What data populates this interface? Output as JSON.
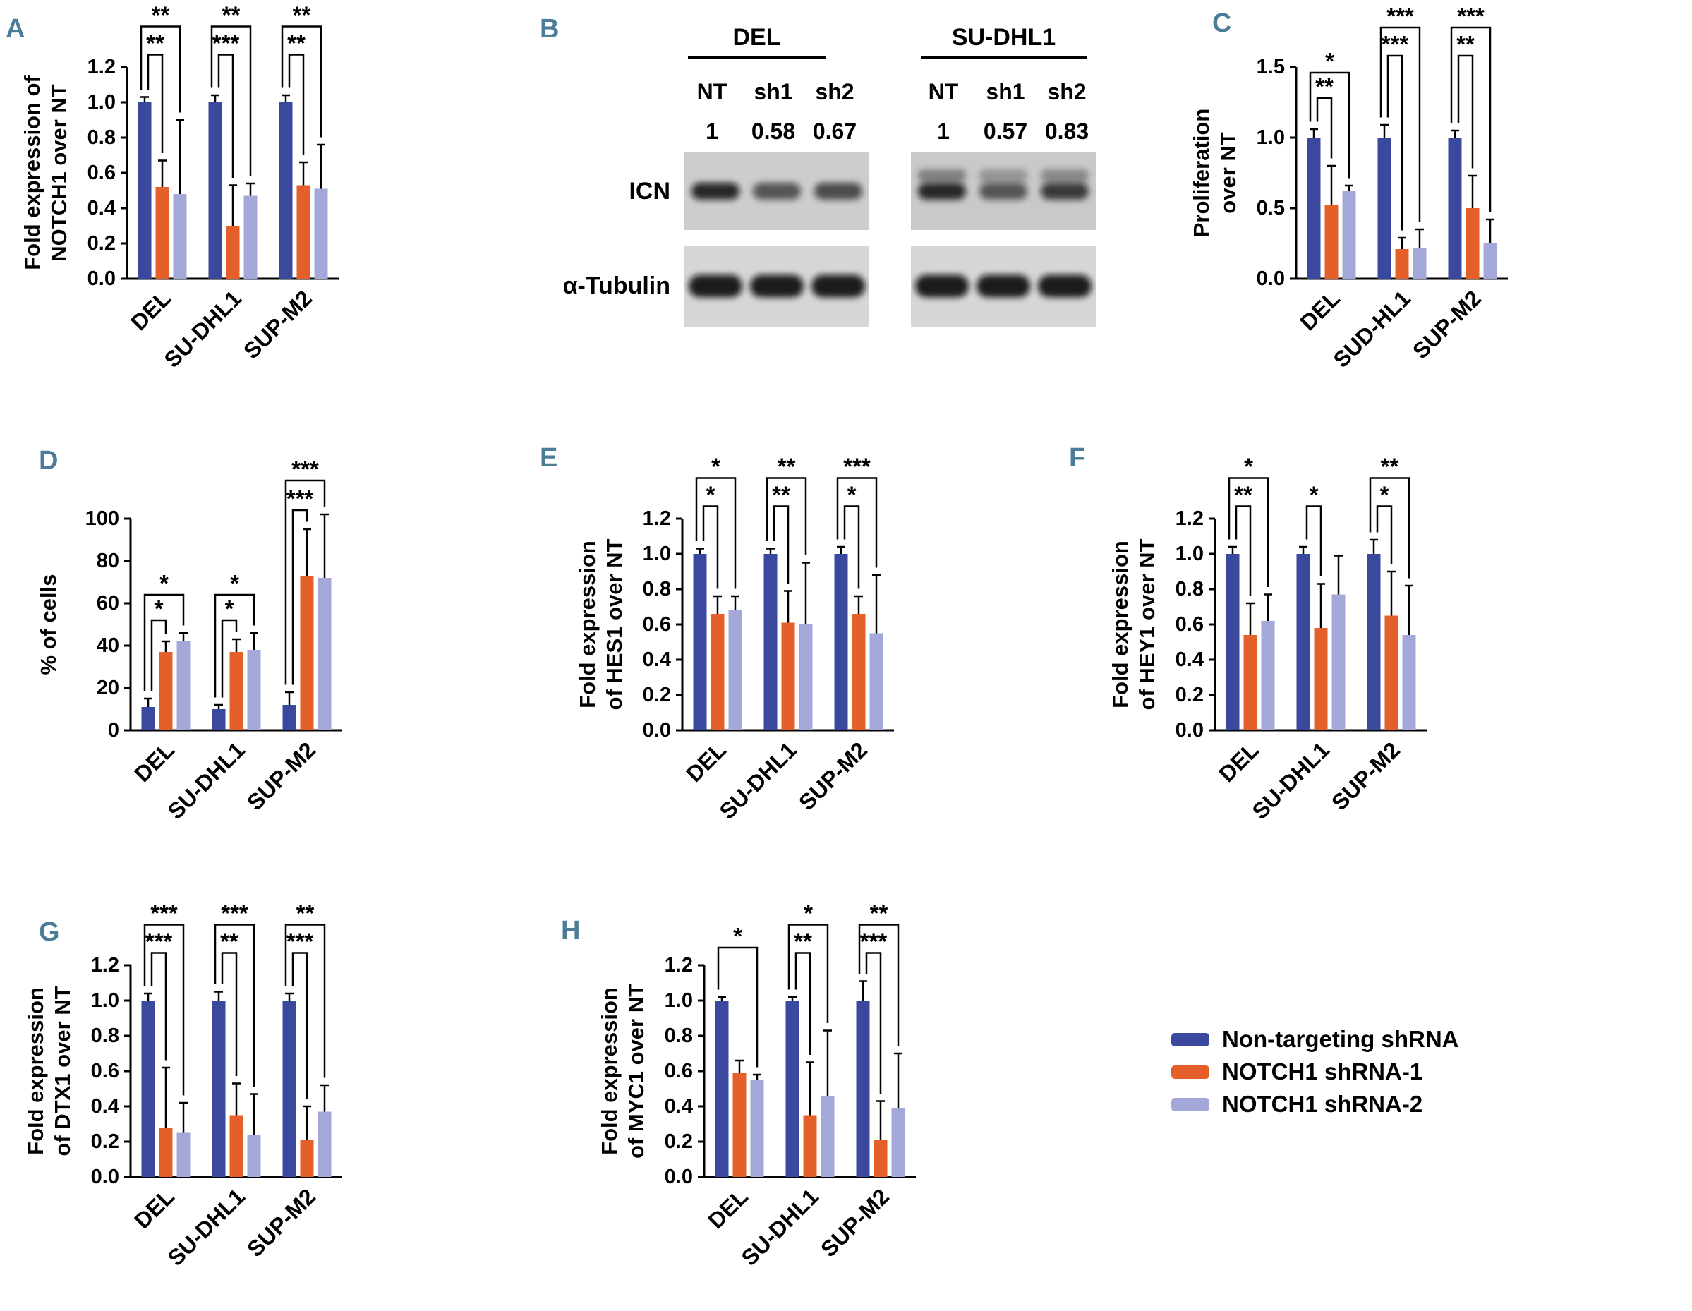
{
  "figure": {
    "panel_letters": {
      "A": "A",
      "B": "B",
      "C": "C",
      "D": "D",
      "E": "E",
      "F": "F",
      "G": "G",
      "H": "H"
    }
  },
  "colors": {
    "series": [
      "#3a499e",
      "#e55f2b",
      "#a3a8d8"
    ],
    "panel_letter": "#4b7d99",
    "axis": "#000000"
  },
  "legend": {
    "items": [
      {
        "label": "Non-targeting shRNA",
        "color": "#3a499e"
      },
      {
        "label": "NOTCH1 shRNA-1",
        "color": "#e55f2b"
      },
      {
        "label": "NOTCH1 shRNA-2",
        "color": "#a3a8d8"
      }
    ]
  },
  "blot": {
    "cell_lines": [
      "DEL",
      "SU-DHL1"
    ],
    "lane_labels": [
      "NT",
      "sh1",
      "sh2"
    ],
    "row_labels": [
      "ICN",
      "α-Tubulin"
    ],
    "quantification": {
      "DEL": [
        "1",
        "0.58",
        "0.67"
      ],
      "SU-DHL1": [
        "1",
        "0.57",
        "0.83"
      ]
    }
  },
  "chart_data": [
    {
      "id": "A",
      "type": "bar",
      "ylabel_lines": [
        "Fold expression of",
        "NOTCH1 over NT"
      ],
      "ylim": [
        0,
        1.2
      ],
      "yticks": [
        0,
        0.2,
        0.4,
        0.6,
        0.8,
        1.0,
        1.2
      ],
      "ytick_labels": [
        "0.0",
        "0.2",
        "0.4",
        "0.6",
        "0.8",
        "1.0",
        "1.2"
      ],
      "categories": [
        "DEL",
        "SU-DHL1",
        "SUP-M2"
      ],
      "series": [
        {
          "name": "Non-targeting shRNA",
          "values": [
            1.0,
            1.0,
            1.0
          ],
          "errors": [
            0.03,
            0.04,
            0.04
          ]
        },
        {
          "name": "NOTCH1 shRNA-1",
          "values": [
            0.52,
            0.3,
            0.53
          ],
          "errors": [
            0.15,
            0.23,
            0.13
          ]
        },
        {
          "name": "NOTCH1 shRNA-2",
          "values": [
            0.48,
            0.47,
            0.51
          ],
          "errors": [
            0.42,
            0.07,
            0.25
          ]
        }
      ],
      "significance": [
        {
          "group": 0,
          "from": 0,
          "to": 1,
          "label": "**",
          "y": 1.27
        },
        {
          "group": 0,
          "from": 0,
          "to": 2,
          "label": "**",
          "y": 1.43
        },
        {
          "group": 1,
          "from": 0,
          "to": 1,
          "label": "***",
          "y": 1.27
        },
        {
          "group": 1,
          "from": 0,
          "to": 2,
          "label": "**",
          "y": 1.43
        },
        {
          "group": 2,
          "from": 0,
          "to": 1,
          "label": "**",
          "y": 1.27
        },
        {
          "group": 2,
          "from": 0,
          "to": 2,
          "label": "**",
          "y": 1.43
        }
      ]
    },
    {
      "id": "C",
      "type": "bar",
      "ylabel_lines": [
        "Proliferation",
        "over NT"
      ],
      "ylim": [
        0,
        1.5
      ],
      "yticks": [
        0,
        0.5,
        1.0,
        1.5
      ],
      "ytick_labels": [
        "0.0",
        "0.5",
        "1.0",
        "1.5"
      ],
      "categories": [
        "DEL",
        "SUD-HL1",
        "SUP-M2"
      ],
      "series": [
        {
          "name": "Non-targeting shRNA",
          "values": [
            1.0,
            1.0,
            1.0
          ],
          "errors": [
            0.06,
            0.09,
            0.05
          ]
        },
        {
          "name": "NOTCH1 shRNA-1",
          "values": [
            0.52,
            0.21,
            0.5
          ],
          "errors": [
            0.28,
            0.08,
            0.23
          ]
        },
        {
          "name": "NOTCH1 shRNA-2",
          "values": [
            0.62,
            0.22,
            0.25
          ],
          "errors": [
            0.04,
            0.13,
            0.17
          ]
        }
      ],
      "significance": [
        {
          "group": 0,
          "from": 0,
          "to": 1,
          "label": "**",
          "y": 1.28
        },
        {
          "group": 0,
          "from": 0,
          "to": 2,
          "label": "*",
          "y": 1.46
        },
        {
          "group": 1,
          "from": 0,
          "to": 1,
          "label": "***",
          "y": 1.58
        },
        {
          "group": 1,
          "from": 0,
          "to": 2,
          "label": "***",
          "y": 1.78
        },
        {
          "group": 2,
          "from": 0,
          "to": 1,
          "label": "**",
          "y": 1.58
        },
        {
          "group": 2,
          "from": 0,
          "to": 2,
          "label": "***",
          "y": 1.78
        }
      ]
    },
    {
      "id": "D",
      "type": "bar",
      "ylabel_lines": [
        "% of cells"
      ],
      "ylim": [
        0,
        100
      ],
      "yticks": [
        0,
        20,
        40,
        60,
        80,
        100
      ],
      "ytick_labels": [
        "0",
        "20",
        "40",
        "60",
        "80",
        "100"
      ],
      "categories": [
        "DEL",
        "SU-DHL1",
        "SUP-M2"
      ],
      "series": [
        {
          "name": "Non-targeting shRNA",
          "values": [
            11,
            10,
            12
          ],
          "errors": [
            4,
            2,
            6
          ]
        },
        {
          "name": "NOTCH1 shRNA-1",
          "values": [
            37,
            37,
            73
          ],
          "errors": [
            5,
            6,
            22
          ]
        },
        {
          "name": "NOTCH1 shRNA-2",
          "values": [
            42,
            38,
            72
          ],
          "errors": [
            4,
            8,
            30
          ]
        }
      ],
      "significance": [
        {
          "group": 0,
          "from": 0,
          "to": 1,
          "label": "*",
          "y": 52
        },
        {
          "group": 0,
          "from": 0,
          "to": 2,
          "label": "*",
          "y": 64
        },
        {
          "group": 1,
          "from": 0,
          "to": 1,
          "label": "*",
          "y": 52
        },
        {
          "group": 1,
          "from": 0,
          "to": 2,
          "label": "*",
          "y": 64
        },
        {
          "group": 2,
          "from": 0,
          "to": 1,
          "label": "***",
          "y": 104
        },
        {
          "group": 2,
          "from": 0,
          "to": 2,
          "label": "***",
          "y": 118
        }
      ]
    },
    {
      "id": "E",
      "type": "bar",
      "ylabel_lines": [
        "Fold expression",
        "of HES1 over NT"
      ],
      "ylim": [
        0,
        1.2
      ],
      "yticks": [
        0,
        0.2,
        0.4,
        0.6,
        0.8,
        1.0,
        1.2
      ],
      "ytick_labels": [
        "0.0",
        "0.2",
        "0.4",
        "0.6",
        "0.8",
        "1.0",
        "1.2"
      ],
      "categories": [
        "DEL",
        "SU-DHL1",
        "SUP-M2"
      ],
      "series": [
        {
          "name": "Non-targeting shRNA",
          "values": [
            1.0,
            1.0,
            1.0
          ],
          "errors": [
            0.03,
            0.03,
            0.04
          ]
        },
        {
          "name": "NOTCH1 shRNA-1",
          "values": [
            0.66,
            0.61,
            0.66
          ],
          "errors": [
            0.1,
            0.18,
            0.1
          ]
        },
        {
          "name": "NOTCH1 shRNA-2",
          "values": [
            0.68,
            0.6,
            0.55
          ],
          "errors": [
            0.08,
            0.35,
            0.33
          ]
        }
      ],
      "significance": [
        {
          "group": 0,
          "from": 0,
          "to": 1,
          "label": "*",
          "y": 1.27
        },
        {
          "group": 0,
          "from": 0,
          "to": 2,
          "label": "*",
          "y": 1.43
        },
        {
          "group": 1,
          "from": 0,
          "to": 1,
          "label": "**",
          "y": 1.27
        },
        {
          "group": 1,
          "from": 0,
          "to": 2,
          "label": "**",
          "y": 1.43
        },
        {
          "group": 2,
          "from": 0,
          "to": 1,
          "label": "*",
          "y": 1.27
        },
        {
          "group": 2,
          "from": 0,
          "to": 2,
          "label": "***",
          "y": 1.43
        }
      ]
    },
    {
      "id": "F",
      "type": "bar",
      "ylabel_lines": [
        "Fold expression",
        "of HEY1 over NT"
      ],
      "ylim": [
        0,
        1.2
      ],
      "yticks": [
        0,
        0.2,
        0.4,
        0.6,
        0.8,
        1.0,
        1.2
      ],
      "ytick_labels": [
        "0.0",
        "0.2",
        "0.4",
        "0.6",
        "0.8",
        "1.0",
        "1.2"
      ],
      "categories": [
        "DEL",
        "SU-DHL1",
        "SUP-M2"
      ],
      "series": [
        {
          "name": "Non-targeting shRNA",
          "values": [
            1.0,
            1.0,
            1.0
          ],
          "errors": [
            0.04,
            0.04,
            0.08
          ]
        },
        {
          "name": "NOTCH1 shRNA-1",
          "values": [
            0.54,
            0.58,
            0.65
          ],
          "errors": [
            0.18,
            0.25,
            0.25
          ]
        },
        {
          "name": "NOTCH1 shRNA-2",
          "values": [
            0.62,
            0.77,
            0.54
          ],
          "errors": [
            0.15,
            0.22,
            0.28
          ]
        }
      ],
      "significance": [
        {
          "group": 0,
          "from": 0,
          "to": 1,
          "label": "**",
          "y": 1.27
        },
        {
          "group": 0,
          "from": 0,
          "to": 2,
          "label": "*",
          "y": 1.43
        },
        {
          "group": 1,
          "from": 0,
          "to": 1,
          "label": "*",
          "y": 1.27
        },
        {
          "group": 2,
          "from": 0,
          "to": 1,
          "label": "*",
          "y": 1.27
        },
        {
          "group": 2,
          "from": 0,
          "to": 2,
          "label": "**",
          "y": 1.43
        }
      ]
    },
    {
      "id": "G",
      "type": "bar",
      "ylabel_lines": [
        "Fold expression",
        "of DTX1 over NT"
      ],
      "ylim": [
        0,
        1.2
      ],
      "yticks": [
        0,
        0.2,
        0.4,
        0.6,
        0.8,
        1.0,
        1.2
      ],
      "ytick_labels": [
        "0.0",
        "0.2",
        "0.4",
        "0.6",
        "0.8",
        "1.0",
        "1.2"
      ],
      "categories": [
        "DEL",
        "SU-DHL1",
        "SUP-M2"
      ],
      "series": [
        {
          "name": "Non-targeting shRNA",
          "values": [
            1.0,
            1.0,
            1.0
          ],
          "errors": [
            0.04,
            0.05,
            0.04
          ]
        },
        {
          "name": "NOTCH1 shRNA-1",
          "values": [
            0.28,
            0.35,
            0.21
          ],
          "errors": [
            0.34,
            0.18,
            0.19
          ]
        },
        {
          "name": "NOTCH1 shRNA-2",
          "values": [
            0.25,
            0.24,
            0.37
          ],
          "errors": [
            0.17,
            0.23,
            0.15
          ]
        }
      ],
      "significance": [
        {
          "group": 0,
          "from": 0,
          "to": 1,
          "label": "***",
          "y": 1.27
        },
        {
          "group": 0,
          "from": 0,
          "to": 2,
          "label": "***",
          "y": 1.43
        },
        {
          "group": 1,
          "from": 0,
          "to": 1,
          "label": "**",
          "y": 1.27
        },
        {
          "group": 1,
          "from": 0,
          "to": 2,
          "label": "***",
          "y": 1.43
        },
        {
          "group": 2,
          "from": 0,
          "to": 1,
          "label": "***",
          "y": 1.27
        },
        {
          "group": 2,
          "from": 0,
          "to": 2,
          "label": "**",
          "y": 1.43
        }
      ]
    },
    {
      "id": "H",
      "type": "bar",
      "ylabel_lines": [
        "Fold expression",
        "of MYC1 over NT"
      ],
      "ylim": [
        0,
        1.2
      ],
      "yticks": [
        0,
        0.2,
        0.4,
        0.6,
        0.8,
        1.0,
        1.2
      ],
      "ytick_labels": [
        "0.0",
        "0.2",
        "0.4",
        "0.6",
        "0.8",
        "1.0",
        "1.2"
      ],
      "categories": [
        "DEL",
        "SU-DHL1",
        "SUP-M2"
      ],
      "series": [
        {
          "name": "Non-targeting shRNA",
          "values": [
            1.0,
            1.0,
            1.0
          ],
          "errors": [
            0.02,
            0.02,
            0.11
          ]
        },
        {
          "name": "NOTCH1 shRNA-1",
          "values": [
            0.59,
            0.35,
            0.21
          ],
          "errors": [
            0.07,
            0.3,
            0.22
          ]
        },
        {
          "name": "NOTCH1 shRNA-2",
          "values": [
            0.55,
            0.46,
            0.39
          ],
          "errors": [
            0.03,
            0.37,
            0.31
          ]
        }
      ],
      "significance": [
        {
          "group": 0,
          "from": 0,
          "to": 2,
          "label": "*",
          "y": 1.3
        },
        {
          "group": 1,
          "from": 0,
          "to": 1,
          "label": "**",
          "y": 1.27
        },
        {
          "group": 1,
          "from": 0,
          "to": 2,
          "label": "*",
          "y": 1.43
        },
        {
          "group": 2,
          "from": 0,
          "to": 1,
          "label": "***",
          "y": 1.27
        },
        {
          "group": 2,
          "from": 0,
          "to": 2,
          "label": "**",
          "y": 1.43
        }
      ]
    }
  ]
}
